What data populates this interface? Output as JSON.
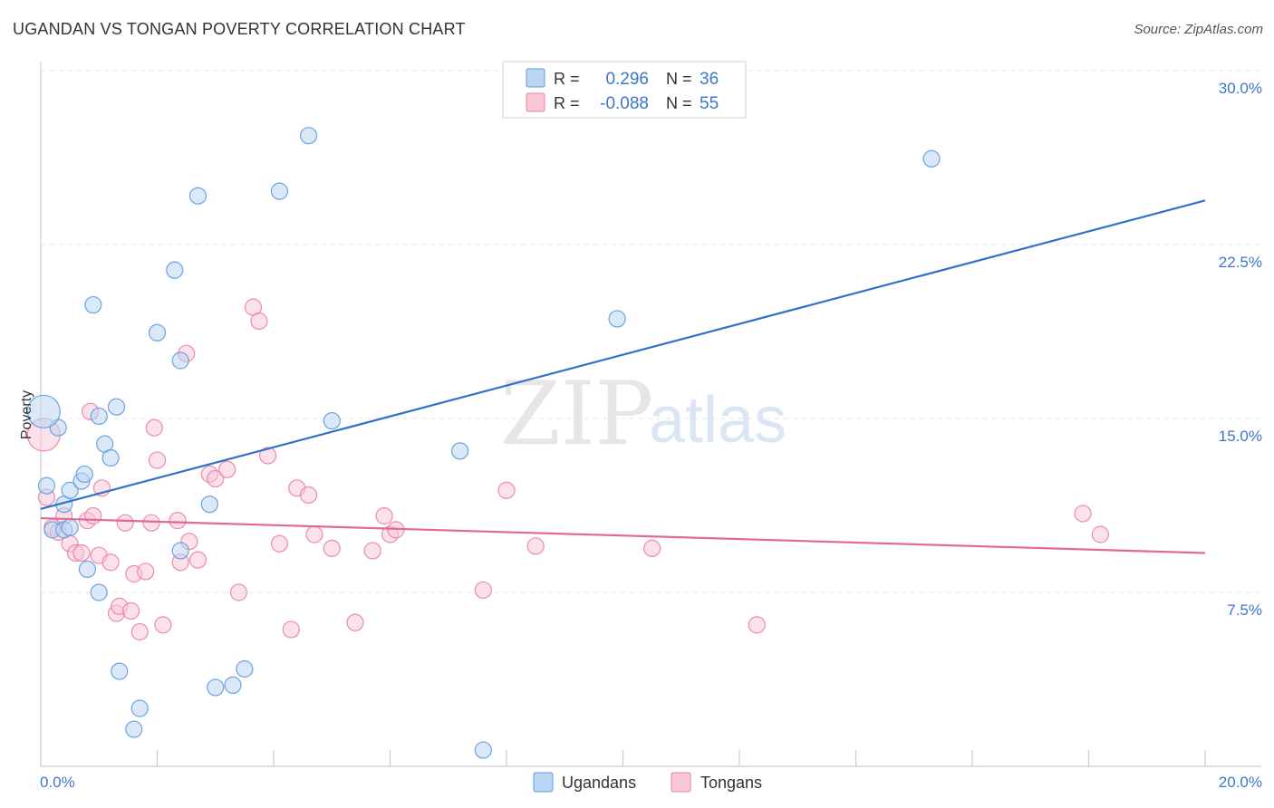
{
  "title": "UGANDAN VS TONGAN POVERTY CORRELATION CHART",
  "source": "Source: ZipAtlas.com",
  "watermark": {
    "zip": "ZIP",
    "atlas": "atlas"
  },
  "colors": {
    "ugandans": "#5b9be0",
    "ugandans_fill": "#bcd5f3",
    "tongans": "#ec7fa3",
    "tongans_fill": "#f8c8d7",
    "blue_line": "#2f72c9",
    "pink_line": "#e2679a",
    "axis_text": "#3b78c9",
    "grid": "#e4e4e4"
  },
  "legend": {
    "r_label": "R =",
    "n_label": "N =",
    "rows": [
      {
        "series": "Ugandans",
        "r": "0.296",
        "n": "36"
      },
      {
        "series": "Tongans",
        "r": "-0.088",
        "n": "55"
      }
    ]
  },
  "bottom_legend": [
    "Ugandans",
    "Tongans"
  ],
  "chart_data": {
    "type": "scatter",
    "title": "UGANDAN VS TONGAN POVERTY CORRELATION CHART",
    "xlabel": "",
    "ylabel": "Poverty",
    "xlim": [
      0,
      20
    ],
    "ylim": [
      0,
      30
    ],
    "x_tick_labels": [
      "0.0%",
      "20.0%"
    ],
    "y_tick_values": [
      7.5,
      15.0,
      22.5,
      30.0
    ],
    "y_tick_labels": [
      "7.5%",
      "15.0%",
      "22.5%",
      "30.0%"
    ],
    "series": [
      {
        "name": "Ugandans",
        "r": 0.296,
        "n": 36,
        "trend": {
          "x": [
            0,
            20
          ],
          "y": [
            11.1,
            24.4
          ]
        },
        "points": [
          [
            0.1,
            12.1
          ],
          [
            0.3,
            14.6
          ],
          [
            0.2,
            10.2
          ],
          [
            0.4,
            10.2
          ],
          [
            0.5,
            10.3
          ],
          [
            0.4,
            11.3
          ],
          [
            0.5,
            11.9
          ],
          [
            0.7,
            12.3
          ],
          [
            0.75,
            12.6
          ],
          [
            0.8,
            8.5
          ],
          [
            1.0,
            7.5
          ],
          [
            1.0,
            15.1
          ],
          [
            1.1,
            13.9
          ],
          [
            1.2,
            13.3
          ],
          [
            1.3,
            15.5
          ],
          [
            0.9,
            19.9
          ],
          [
            1.35,
            4.1
          ],
          [
            1.6,
            1.6
          ],
          [
            1.7,
            2.5
          ],
          [
            2.0,
            18.7
          ],
          [
            2.3,
            21.4
          ],
          [
            2.4,
            17.5
          ],
          [
            2.7,
            24.6
          ],
          [
            2.4,
            9.3
          ],
          [
            2.9,
            11.3
          ],
          [
            3.0,
            3.4
          ],
          [
            3.3,
            3.5
          ],
          [
            3.5,
            4.2
          ],
          [
            4.1,
            24.8
          ],
          [
            4.6,
            27.2
          ],
          [
            5.0,
            14.9
          ],
          [
            7.2,
            13.6
          ],
          [
            7.6,
            0.7
          ],
          [
            9.9,
            19.3
          ],
          [
            15.3,
            26.2
          ],
          [
            0.05,
            15.3
          ]
        ]
      },
      {
        "name": "Tongans",
        "r": -0.088,
        "n": 55,
        "trend": {
          "x": [
            0,
            20
          ],
          "y": [
            10.7,
            9.2
          ]
        },
        "points": [
          [
            0.05,
            14.3
          ],
          [
            0.1,
            11.6
          ],
          [
            0.2,
            10.3
          ],
          [
            0.3,
            10.1
          ],
          [
            0.4,
            10.8
          ],
          [
            0.5,
            9.6
          ],
          [
            0.6,
            9.2
          ],
          [
            0.7,
            9.2
          ],
          [
            0.8,
            10.6
          ],
          [
            0.85,
            15.3
          ],
          [
            0.9,
            10.8
          ],
          [
            1.0,
            9.1
          ],
          [
            1.05,
            12.0
          ],
          [
            1.2,
            8.8
          ],
          [
            1.3,
            6.6
          ],
          [
            1.35,
            6.9
          ],
          [
            1.45,
            10.5
          ],
          [
            1.55,
            6.7
          ],
          [
            1.6,
            8.3
          ],
          [
            1.7,
            5.8
          ],
          [
            1.8,
            8.4
          ],
          [
            1.9,
            10.5
          ],
          [
            1.95,
            14.6
          ],
          [
            2.0,
            13.2
          ],
          [
            2.1,
            6.1
          ],
          [
            2.35,
            10.6
          ],
          [
            2.4,
            8.8
          ],
          [
            2.5,
            17.8
          ],
          [
            2.55,
            9.7
          ],
          [
            2.7,
            8.9
          ],
          [
            2.9,
            12.6
          ],
          [
            3.0,
            12.4
          ],
          [
            3.2,
            12.8
          ],
          [
            3.4,
            7.5
          ],
          [
            3.65,
            19.8
          ],
          [
            3.75,
            19.2
          ],
          [
            3.9,
            13.4
          ],
          [
            4.1,
            9.6
          ],
          [
            4.3,
            5.9
          ],
          [
            4.4,
            12.0
          ],
          [
            4.6,
            11.7
          ],
          [
            4.7,
            10.0
          ],
          [
            5.0,
            9.4
          ],
          [
            5.4,
            6.2
          ],
          [
            5.7,
            9.3
          ],
          [
            5.9,
            10.8
          ],
          [
            6.0,
            10.0
          ],
          [
            6.1,
            10.2
          ],
          [
            7.6,
            7.6
          ],
          [
            8.0,
            11.9
          ],
          [
            8.5,
            9.5
          ],
          [
            10.5,
            9.4
          ],
          [
            12.3,
            6.1
          ],
          [
            17.9,
            10.9
          ],
          [
            18.2,
            10.0
          ]
        ]
      }
    ]
  }
}
